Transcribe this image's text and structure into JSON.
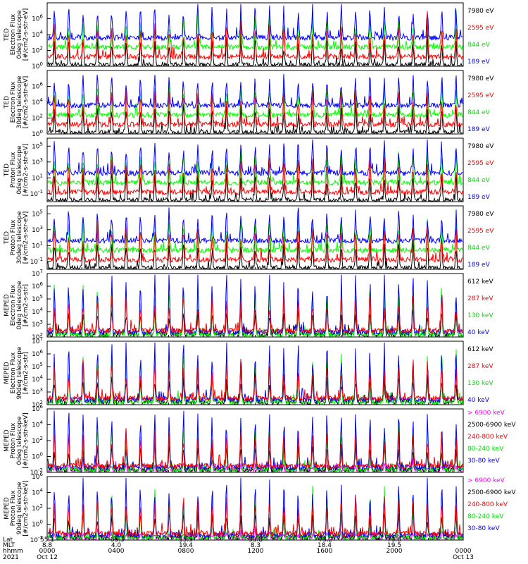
{
  "colors": {
    "black": "#000000",
    "blue": "#0000ff",
    "green": "#00ff00",
    "red": "#ff0000",
    "magenta": "#ff00ff"
  },
  "chart_data": [
    {
      "type": "line",
      "ylabel": [
        "TED",
        "Electron Flux",
        "0deg telescope",
        "[#/cm2-s-str-eV]"
      ],
      "yticks": [
        {
          "exp": 6,
          "v": 1000000.0
        },
        {
          "exp": 4,
          "v": 10000.0
        },
        {
          "exp": 2,
          "v": 100.0
        },
        {
          "exp": 0,
          "v": 1.0
        }
      ],
      "ylim": [
        1,
        100000000.0
      ],
      "log": true,
      "series": [
        {
          "name": "7980 eV",
          "color": "#000000"
        },
        {
          "name": "2595 eV",
          "color": "#ff0000"
        },
        {
          "name": "844 eV",
          "color": "#00ff00"
        },
        {
          "name": "189 eV",
          "color": "#0000ff"
        }
      ]
    },
    {
      "type": "line",
      "ylabel": [
        "TED",
        "Electron Flux",
        "30deg telescope",
        "[#/cm2-s-str-eV]"
      ],
      "yticks": [
        {
          "exp": 6,
          "v": 1000000.0
        },
        {
          "exp": 4,
          "v": 10000.0
        },
        {
          "exp": 2,
          "v": 100.0
        },
        {
          "exp": 0,
          "v": 1.0
        }
      ],
      "ylim": [
        1,
        100000000.0
      ],
      "log": true,
      "series": [
        {
          "name": "7980 eV",
          "color": "#000000"
        },
        {
          "name": "2595 eV",
          "color": "#ff0000"
        },
        {
          "name": "844 eV",
          "color": "#00ff00"
        },
        {
          "name": "189 eV",
          "color": "#0000ff"
        }
      ]
    },
    {
      "type": "line",
      "ylabel": [
        "TED",
        "Proton Flux",
        "0deg telescope",
        "[#/cm2-s-str-eV]"
      ],
      "yticks": [
        {
          "exp": 5,
          "v": 100000.0
        },
        {
          "exp": 3,
          "v": 1000.0
        },
        {
          "exp": 1,
          "v": 10.0
        },
        {
          "exp": -1,
          "v": 0.1
        }
      ],
      "ylim": [
        0.01,
        1000000.0
      ],
      "log": true,
      "series": [
        {
          "name": "7980 eV",
          "color": "#000000"
        },
        {
          "name": "2595 eV",
          "color": "#ff0000"
        },
        {
          "name": "844 eV",
          "color": "#00ff00"
        },
        {
          "name": "189 eV",
          "color": "#0000ff"
        }
      ]
    },
    {
      "type": "line",
      "ylabel": [
        "TED",
        "Proton Flux",
        "30deg telescope",
        "[#/cm2-s-str-eV]"
      ],
      "yticks": [
        {
          "exp": 5,
          "v": 100000.0
        },
        {
          "exp": 3,
          "v": 1000.0
        },
        {
          "exp": 1,
          "v": 10.0
        },
        {
          "exp": -1,
          "v": 0.1
        }
      ],
      "ylim": [
        0.01,
        1000000.0
      ],
      "log": true,
      "series": [
        {
          "name": "7980 eV",
          "color": "#000000"
        },
        {
          "name": "2595 eV",
          "color": "#ff0000"
        },
        {
          "name": "844 eV",
          "color": "#00ff00"
        },
        {
          "name": "189 eV",
          "color": "#0000ff"
        }
      ]
    },
    {
      "type": "line",
      "ylabel": [
        "MEPED",
        "Electron Flux",
        "0deg telescope",
        "[#/cm2-s-str]"
      ],
      "yticks": [
        {
          "exp": 7,
          "v": 10000000.0
        },
        {
          "exp": 6,
          "v": 1000000.0
        },
        {
          "exp": 5,
          "v": 100000.0
        },
        {
          "exp": 4,
          "v": 10000.0
        },
        {
          "exp": 3,
          "v": 1000.0
        },
        {
          "exp": 2,
          "v": 100.0
        }
      ],
      "ylim": [
        100,
        10000000.0
      ],
      "log": true,
      "series": [
        {
          "name": "612 keV",
          "color": "#000000"
        },
        {
          "name": "287 keV",
          "color": "#ff0000"
        },
        {
          "name": "130 keV",
          "color": "#00ff00"
        },
        {
          "name": "40 keV",
          "color": "#0000ff"
        }
      ]
    },
    {
      "type": "line",
      "ylabel": [
        "MEPED",
        "Electron Flux",
        "90deg telescope",
        "[#/cm2-s-str]"
      ],
      "yticks": [
        {
          "exp": 7,
          "v": 10000000.0
        },
        {
          "exp": 6,
          "v": 1000000.0
        },
        {
          "exp": 5,
          "v": 100000.0
        },
        {
          "exp": 4,
          "v": 10000.0
        },
        {
          "exp": 3,
          "v": 1000.0
        },
        {
          "exp": 2,
          "v": 100.0
        }
      ],
      "ylim": [
        100,
        10000000.0
      ],
      "log": true,
      "series": [
        {
          "name": "612 keV",
          "color": "#000000"
        },
        {
          "name": "287 keV",
          "color": "#ff0000"
        },
        {
          "name": "130 keV",
          "color": "#00ff00"
        },
        {
          "name": "40 keV",
          "color": "#0000ff"
        }
      ]
    },
    {
      "type": "line",
      "ylabel": [
        "MEPED",
        "Proton Flux",
        "0deg telescope",
        "[#/cm2-s-str-keV]"
      ],
      "yticks": [
        {
          "exp": 6,
          "v": 1000000.0
        },
        {
          "exp": 4,
          "v": 10000.0
        },
        {
          "exp": 2,
          "v": 100.0
        },
        {
          "exp": 0,
          "v": 1.0
        },
        {
          "exp": -2,
          "v": 0.01
        }
      ],
      "ylim": [
        0.01,
        1000000.0
      ],
      "log": true,
      "series": [
        {
          "name": "> 6900 keV",
          "color": "#ff00ff"
        },
        {
          "name": "2500-6900 keV",
          "color": "#000000"
        },
        {
          "name": "240-800 keV",
          "color": "#ff0000"
        },
        {
          "name": "80-240 keV",
          "color": "#00ff00"
        },
        {
          "name": "30-80 keV",
          "color": "#0000ff"
        }
      ]
    },
    {
      "type": "line",
      "ylabel": [
        "MEPED",
        "Proton Flux",
        "90deg telescope",
        "[#/cm2-s-str-keV]"
      ],
      "yticks": [
        {
          "exp": 6,
          "v": 1000000.0
        },
        {
          "exp": 4,
          "v": 10000.0
        },
        {
          "exp": 2,
          "v": 100.0
        },
        {
          "exp": 0,
          "v": 1.0
        },
        {
          "exp": -2,
          "v": 0.01
        }
      ],
      "ylim": [
        0.01,
        1000000.0
      ],
      "log": true,
      "series": [
        {
          "name": "> 6900 keV",
          "color": "#ff00ff"
        },
        {
          "name": "2500-6900 keV",
          "color": "#000000"
        },
        {
          "name": "240-800 keV",
          "color": "#ff0000"
        },
        {
          "name": "80-240 keV",
          "color": "#00ff00"
        },
        {
          "name": "30-80 keV",
          "color": "#0000ff"
        }
      ]
    }
  ],
  "footer": {
    "rows": [
      {
        "label": "Lat",
        "values": [
          "55.1",
          "-65.3",
          "15.5",
          "33.8",
          "-73.2",
          "73.6",
          ""
        ]
      },
      {
        "label": "MLT",
        "values": [
          "8.8",
          "4.0",
          "19.4",
          "8.3",
          "18.4",
          "19.5",
          ""
        ]
      },
      {
        "label": "hhmm",
        "values": [
          "0000",
          "0400",
          "0800",
          "1200",
          "1600",
          "2000",
          "0000"
        ]
      },
      {
        "label": "2021",
        "values": [
          "Oct 12",
          "",
          "",
          "",
          "",
          "",
          "Oct 13"
        ]
      }
    ]
  }
}
